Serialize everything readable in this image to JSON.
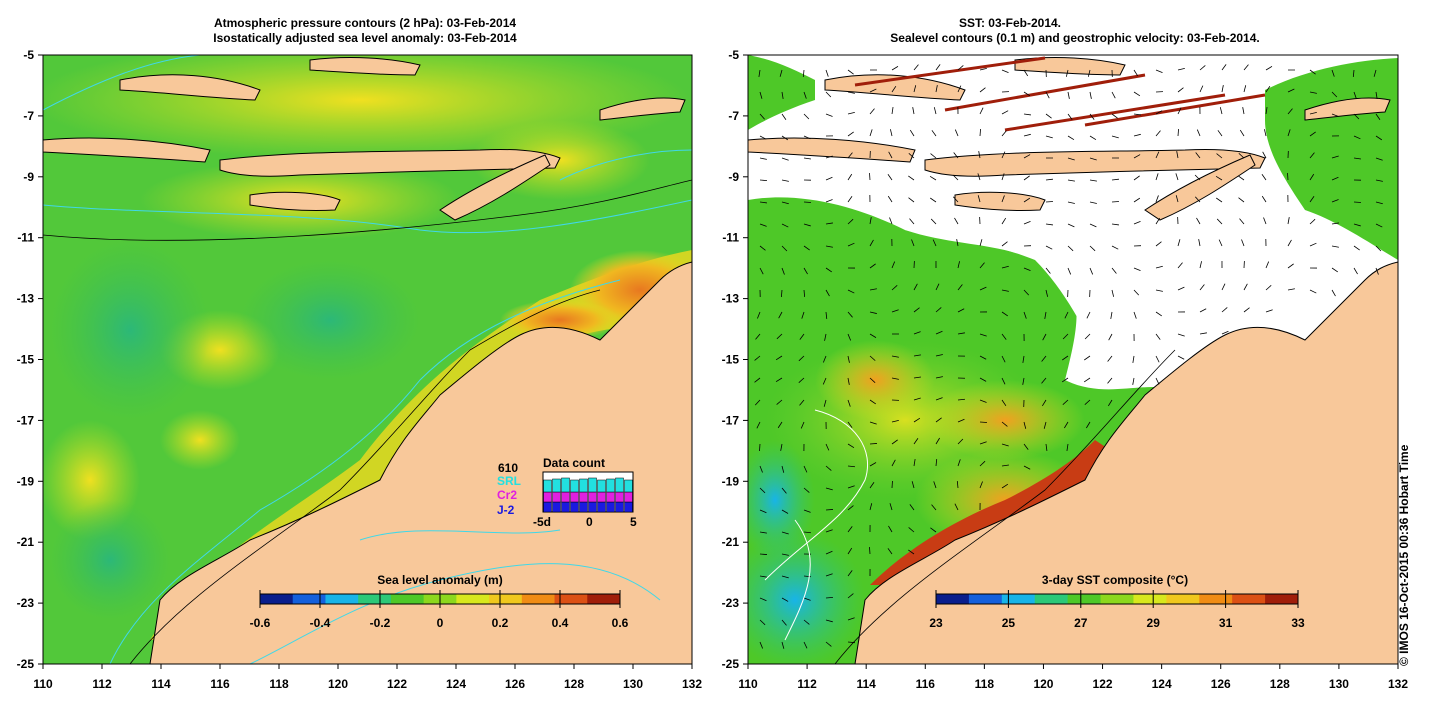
{
  "left_panel": {
    "title_line1": "Atmospheric pressure contours (2 hPa): 03-Feb-2014",
    "title_line2": "Isostatically adjusted sea level anomaly: 03-Feb-2014",
    "colorbar": {
      "title": "Sea level anomaly (m)",
      "ticks": [
        "-0.6",
        "-0.4",
        "-0.2",
        "0",
        "0.2",
        "0.4",
        "0.6"
      ],
      "colors": [
        "#0a1e8c",
        "#1460dc",
        "#18b4e8",
        "#2cc878",
        "#4ec828",
        "#8cd81e",
        "#d8e81e",
        "#f0c81e",
        "#f08c14",
        "#dc5014",
        "#a01e0a"
      ]
    },
    "data_count": {
      "title": "Data count",
      "total": "610",
      "satellites": [
        {
          "name": "SRL",
          "color": "#22e0e0"
        },
        {
          "name": "Cr2",
          "color": "#e020e0"
        },
        {
          "name": "J-2",
          "color": "#1a1ae0"
        }
      ],
      "axis_ticks": [
        "-5d",
        "0",
        "5"
      ]
    }
  },
  "right_panel": {
    "title_line1": "SST: 03-Feb-2014.",
    "title_line2": "Sealevel contours (0.1 m) and geostrophic velocity: 03-Feb-2014.",
    "colorbar": {
      "title": "3-day SST composite (°C)",
      "ticks": [
        "23",
        "25",
        "27",
        "29",
        "31",
        "33"
      ],
      "colors": [
        "#0a1e8c",
        "#1460dc",
        "#18b4e8",
        "#2cc878",
        "#4ec828",
        "#8cd81e",
        "#d8e81e",
        "#f0c81e",
        "#f08c14",
        "#dc5014",
        "#a01e0a"
      ]
    }
  },
  "axes": {
    "x_ticks": [
      "110",
      "112",
      "114",
      "116",
      "118",
      "120",
      "122",
      "124",
      "126",
      "128",
      "130",
      "132"
    ],
    "y_ticks": [
      "-5",
      "-7",
      "-9",
      "-11",
      "-13",
      "-15",
      "-17",
      "-19",
      "-21",
      "-23",
      "-25"
    ]
  },
  "colors": {
    "land": "#f8c89a",
    "coast": "#000000",
    "bathy": "#40d8e8",
    "ocean": "#52c83a",
    "warm": "#e8d820",
    "hot": "#e87820"
  },
  "credit": "© IMOS 16-Oct-2015 00:36 Hobart Time"
}
